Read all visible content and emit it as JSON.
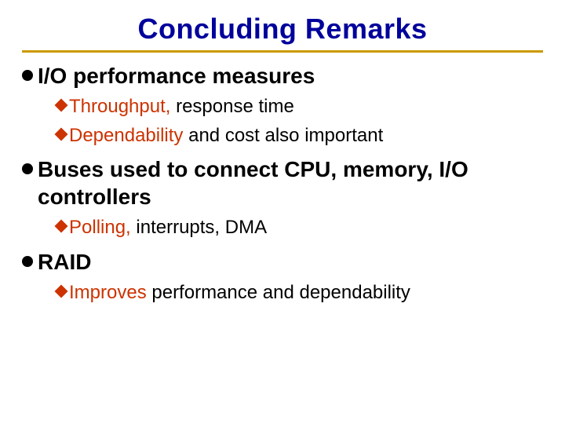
{
  "title": {
    "text": "Concluding Remarks",
    "fontsize": 36,
    "color": "#00009c",
    "rule_color": "#cc9900"
  },
  "colors": {
    "body_text": "#000000",
    "accent": "#cc3300",
    "l1_bullet": "#000000",
    "l2_bullet": "#cc3300",
    "background": "#ffffff"
  },
  "typography": {
    "l1_fontsize": 28,
    "l2_fontsize": 24,
    "l1_bullet_size": 14,
    "l2_bullet_size": 12
  },
  "outline": [
    {
      "text": "I/O performance measures",
      "children": [
        {
          "lead": "Throughput,",
          "rest": " response time"
        },
        {
          "lead": "Dependability",
          "rest": " and cost also important"
        }
      ]
    },
    {
      "text": "Buses used to connect CPU, memory, I/O controllers",
      "children": [
        {
          "lead": "Polling,",
          "rest": " interrupts, DMA"
        }
      ]
    },
    {
      "text": "RAID",
      "children": [
        {
          "lead": "Improves",
          "rest": " performance and dependability"
        }
      ]
    }
  ]
}
